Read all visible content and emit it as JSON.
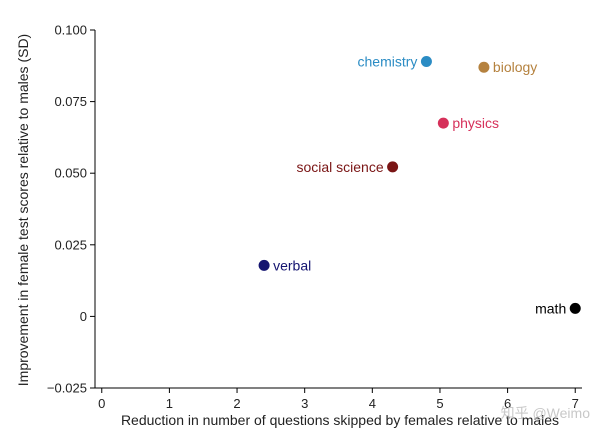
{
  "chart_data": {
    "type": "scatter",
    "title": "",
    "xlabel": "Reduction in number of questions skipped by females relative to males",
    "ylabel": "Improvement in female test scores relative to males (SD)",
    "xlim": [
      -0.1,
      7.1
    ],
    "ylim": [
      -0.025,
      0.1
    ],
    "x_ticks": [
      {
        "value": 0,
        "label": "0"
      },
      {
        "value": 1,
        "label": "1"
      },
      {
        "value": 2,
        "label": "2"
      },
      {
        "value": 3,
        "label": "3"
      },
      {
        "value": 4,
        "label": "4"
      },
      {
        "value": 5,
        "label": "5"
      },
      {
        "value": 6,
        "label": "6"
      },
      {
        "value": 7,
        "label": "7"
      }
    ],
    "y_ticks": [
      {
        "value": -0.025,
        "label": "−0.025"
      },
      {
        "value": 0,
        "label": "0"
      },
      {
        "value": 0.025,
        "label": "0.025"
      },
      {
        "value": 0.05,
        "label": "0.050"
      },
      {
        "value": 0.075,
        "label": "0.075"
      },
      {
        "value": 0.1,
        "label": "0.100"
      }
    ],
    "grid": false,
    "points": [
      {
        "label": "chemistry",
        "x": 4.8,
        "y": 0.089,
        "color": "#2b8cc4",
        "label_side": "left"
      },
      {
        "label": "biology",
        "x": 5.65,
        "y": 0.087,
        "color": "#b5823f",
        "label_side": "right"
      },
      {
        "label": "physics",
        "x": 5.05,
        "y": 0.0675,
        "color": "#d6305a",
        "label_side": "right"
      },
      {
        "label": "social science",
        "x": 4.3,
        "y": 0.0522,
        "color": "#7a1515",
        "label_side": "left"
      },
      {
        "label": "verbal",
        "x": 2.4,
        "y": 0.0178,
        "color": "#141470",
        "label_side": "right"
      },
      {
        "label": "math",
        "x": 7.0,
        "y": 0.0028,
        "color": "#000000",
        "label_side": "left"
      }
    ]
  },
  "watermark": "知乎 @Weimo"
}
